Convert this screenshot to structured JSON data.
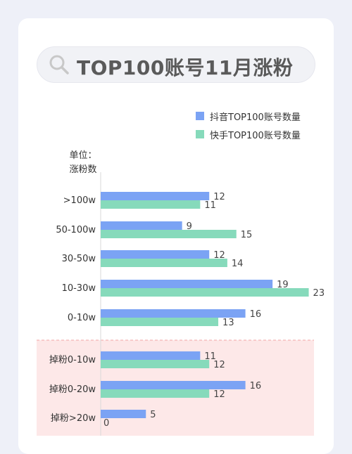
{
  "header": {
    "title": "TOP100账号11月涨粉"
  },
  "unit_label": {
    "line1": "单位：",
    "line2": "涨粉数"
  },
  "colors": {
    "douyin": "#7ba3f4",
    "kuaishou": "#86dabb",
    "highlight_band": "#fde8e8",
    "divider": "#f2a5a5"
  },
  "chart_data": {
    "type": "bar",
    "orientation": "horizontal",
    "categories": [
      ">100w",
      "50-100w",
      "30-50w",
      "10-30w",
      "0-10w",
      "掉粉0-10w",
      "掉粉0-20w",
      "掉粉>20w"
    ],
    "series": [
      {
        "name": "抖音TOP100账号数量",
        "values": [
          12,
          9,
          12,
          19,
          16,
          11,
          16,
          5
        ]
      },
      {
        "name": "快手TOP100账号数量",
        "values": [
          11,
          15,
          14,
          23,
          13,
          12,
          12,
          0
        ]
      }
    ],
    "xlim": [
      0,
      25
    ],
    "legend": "top-right",
    "grid": false
  }
}
